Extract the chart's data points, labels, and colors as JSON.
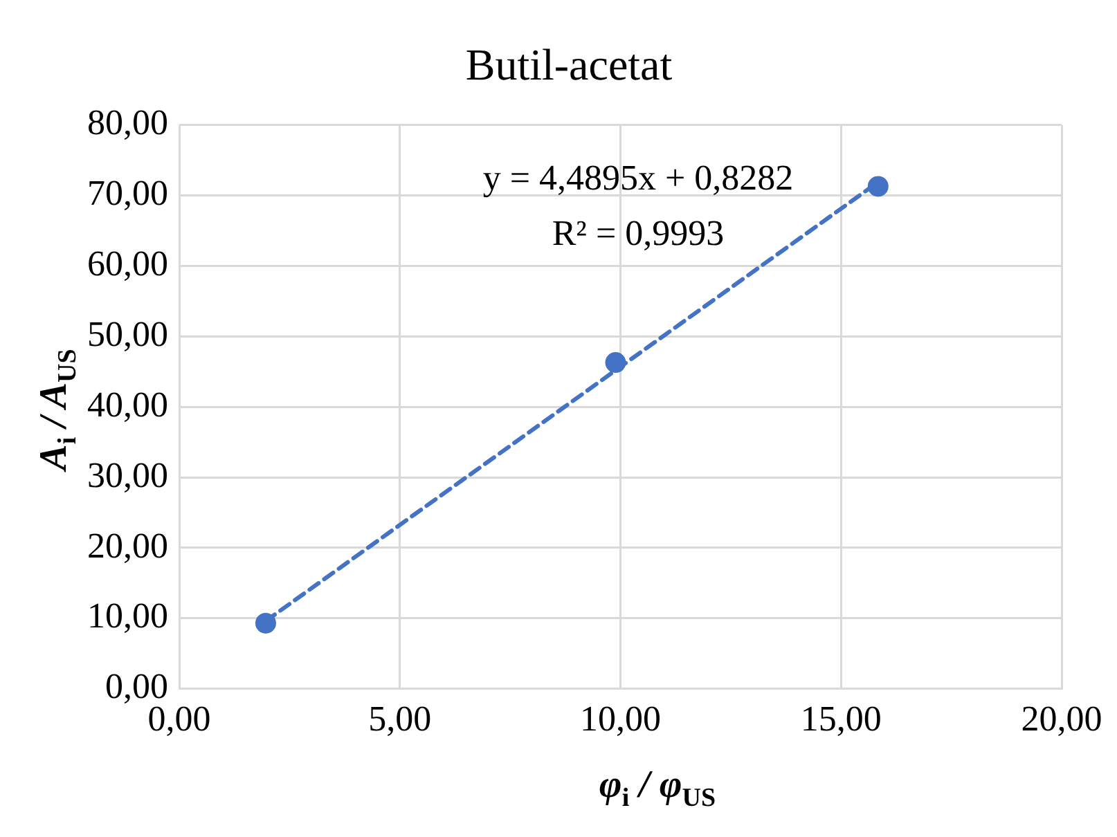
{
  "chart_data": {
    "type": "scatter",
    "title": "Butil-acetat",
    "xlabel": "φ$_{i}$ / φ$_{US}$",
    "ylabel": "A$_{i}$ / A$_{US}$",
    "series": [
      {
        "color": "#4472c4",
        "marker": "circle",
        "x": [
          1.96,
          9.89,
          15.84
        ],
        "values": [
          9.3,
          46.3,
          71.3
        ]
      },
      {
        "type": "line",
        "color": "#4472c4",
        "line_style": "dashed",
        "marker": "none",
        "x": [
          1.96,
          15.84
        ],
        "values": [
          9.6,
          71.9
        ]
      }
    ],
    "xlim": [
      0,
      20
    ],
    "xticks": [
      {
        "value": 0,
        "label": "0,00"
      },
      {
        "value": 5,
        "label": "5,00"
      },
      {
        "value": 10,
        "label": "10,00"
      },
      {
        "value": 15,
        "label": "15,00"
      },
      {
        "value": 20,
        "label": "20,00"
      }
    ],
    "ylim": [
      0,
      80
    ],
    "yticks": [
      {
        "value": 0,
        "label": "0,00"
      },
      {
        "value": 10,
        "label": "10,00"
      },
      {
        "value": 20,
        "label": "20,00"
      },
      {
        "value": 30,
        "label": "30,00"
      },
      {
        "value": 40,
        "label": "40,00"
      },
      {
        "value": 50,
        "label": "50,00"
      },
      {
        "value": 60,
        "label": "60,00"
      },
      {
        "value": 70,
        "label": "70,00"
      },
      {
        "value": 80,
        "label": "80,00"
      }
    ],
    "grid": true,
    "legend": false,
    "annotations": [
      "y = 4,4895x + 0,8282",
      "R² = 0,9993"
    ]
  }
}
